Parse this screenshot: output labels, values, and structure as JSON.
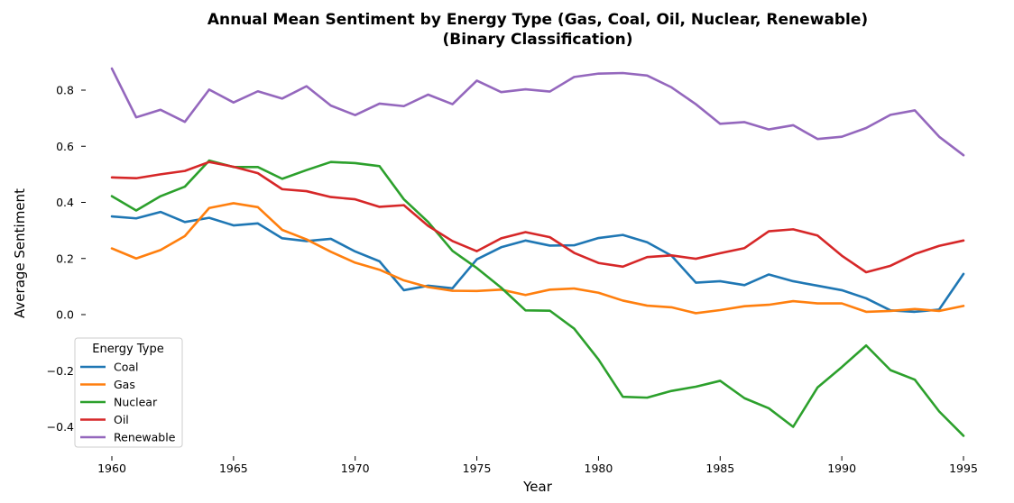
{
  "chart_data": {
    "type": "line",
    "title_line1": "Annual Mean Sentiment by Energy Type (Gas, Coal, Oil, Nuclear, Renewable)",
    "title_line2": "(Binary Classification)",
    "xlabel": "Year",
    "ylabel": "Average Sentiment",
    "xlim": [
      1959.3,
      1995.7
    ],
    "ylim": [
      -0.45,
      0.9
    ],
    "x_ticks": [
      1960,
      1965,
      1970,
      1975,
      1980,
      1985,
      1990,
      1995
    ],
    "y_ticks": [
      -0.4,
      -0.2,
      0.0,
      0.2,
      0.4,
      0.6,
      0.8
    ],
    "y_tick_labels": [
      "−0.4",
      "−0.2",
      "0.0",
      "0.2",
      "0.4",
      "0.6",
      "0.8"
    ],
    "grid": false,
    "legend_title": "Energy Type",
    "legend_position": "lower-left",
    "x": [
      1960,
      1961,
      1962,
      1963,
      1964,
      1965,
      1966,
      1967,
      1968,
      1969,
      1970,
      1971,
      1972,
      1973,
      1974,
      1975,
      1976,
      1977,
      1978,
      1979,
      1980,
      1981,
      1982,
      1983,
      1984,
      1985,
      1986,
      1987,
      1988,
      1989,
      1990,
      1991,
      1992,
      1993,
      1994,
      1995
    ],
    "series": [
      {
        "name": "Coal",
        "color": "#1f77b4",
        "values": [
          0.35,
          0.343,
          0.366,
          0.33,
          0.345,
          0.318,
          0.325,
          0.272,
          0.262,
          0.27,
          0.225,
          0.19,
          0.087,
          0.103,
          0.094,
          0.197,
          0.24,
          0.264,
          0.246,
          0.247,
          0.273,
          0.284,
          0.258,
          0.21,
          0.114,
          0.119,
          0.105,
          0.143,
          0.119,
          0.103,
          0.087,
          0.058,
          0.015,
          0.01,
          0.018,
          0.145
        ]
      },
      {
        "name": "Gas",
        "color": "#ff7f0e",
        "values": [
          0.236,
          0.2,
          0.23,
          0.28,
          0.38,
          0.397,
          0.383,
          0.302,
          0.268,
          0.224,
          0.185,
          0.16,
          0.122,
          0.098,
          0.085,
          0.084,
          0.089,
          0.07,
          0.089,
          0.093,
          0.078,
          0.05,
          0.032,
          0.026,
          0.005,
          0.016,
          0.03,
          0.035,
          0.048,
          0.04,
          0.04,
          0.01,
          0.013,
          0.02,
          0.013,
          0.031
        ]
      },
      {
        "name": "Nuclear",
        "color": "#2ca02c",
        "values": [
          0.422,
          0.371,
          0.422,
          0.456,
          0.549,
          0.526,
          0.526,
          0.484,
          0.515,
          0.544,
          0.54,
          0.529,
          0.411,
          0.33,
          0.227,
          0.166,
          0.096,
          0.015,
          0.014,
          -0.05,
          -0.16,
          -0.293,
          -0.296,
          -0.272,
          -0.257,
          -0.236,
          -0.298,
          -0.334,
          -0.4,
          -0.26,
          -0.187,
          -0.11,
          -0.198,
          -0.232,
          -0.345,
          -0.432
        ]
      },
      {
        "name": "Oil",
        "color": "#d62728",
        "values": [
          0.489,
          0.486,
          0.5,
          0.512,
          0.544,
          0.527,
          0.504,
          0.447,
          0.44,
          0.419,
          0.411,
          0.384,
          0.39,
          0.316,
          0.262,
          0.226,
          0.272,
          0.294,
          0.276,
          0.22,
          0.184,
          0.171,
          0.205,
          0.211,
          0.199,
          0.219,
          0.237,
          0.297,
          0.304,
          0.282,
          0.21,
          0.151,
          0.174,
          0.216,
          0.245,
          0.264
        ]
      },
      {
        "name": "Renewable",
        "color": "#9467bd",
        "values": [
          0.877,
          0.703,
          0.73,
          0.687,
          0.802,
          0.756,
          0.796,
          0.77,
          0.814,
          0.745,
          0.711,
          0.752,
          0.743,
          0.784,
          0.75,
          0.834,
          0.793,
          0.803,
          0.795,
          0.847,
          0.859,
          0.861,
          0.852,
          0.81,
          0.75,
          0.68,
          0.686,
          0.66,
          0.675,
          0.626,
          0.634,
          0.665,
          0.712,
          0.728,
          0.634,
          0.568
        ]
      }
    ]
  }
}
